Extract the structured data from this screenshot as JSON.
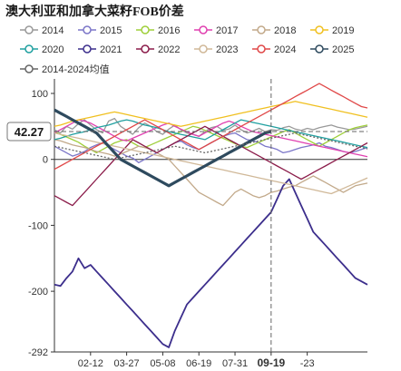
{
  "chart_data": {
    "type": "line",
    "title": "澳大利亚和加拿大菜籽FOB价差",
    "xlabel": "",
    "ylabel": "",
    "ylim": [
      -292,
      122
    ],
    "yticks": [
      100,
      0,
      -100,
      -200,
      -292
    ],
    "x_count": 53,
    "x_ticks": [
      {
        "i": 6,
        "label": "02-12"
      },
      {
        "i": 12,
        "label": "03-27"
      },
      {
        "i": 18,
        "label": "05-08"
      },
      {
        "i": 24,
        "label": "06-19"
      },
      {
        "i": 30,
        "label": "07-31"
      },
      {
        "i": 36,
        "label": "09-19",
        "bold": true
      },
      {
        "i": 42,
        "label": "-23"
      }
    ],
    "highlight": {
      "x_index": 36,
      "y": 42.27,
      "label": "42.27"
    },
    "legend_position": "top",
    "series": [
      {
        "name": "2014",
        "color": "#999999",
        "width": 1.3,
        "values": [
          45,
          40,
          50,
          46,
          54,
          60,
          52,
          45,
          40,
          58,
          62,
          50,
          44,
          38,
          48,
          55,
          50,
          42,
          38,
          46,
          52,
          45,
          40,
          38,
          35,
          42,
          48,
          50,
          44,
          46,
          52,
          45,
          40,
          43,
          47,
          42,
          45,
          44,
          48,
          50,
          46,
          44,
          47,
          45,
          48,
          50,
          52,
          49,
          47,
          45,
          46,
          48,
          50
        ]
      },
      {
        "name": "2015",
        "color": "#7b76c8",
        "width": 1.3,
        "values": [
          20,
          15,
          10,
          5,
          8,
          12,
          18,
          22,
          25,
          20,
          15,
          10,
          5,
          2,
          -5,
          0,
          5,
          10,
          15,
          20,
          25,
          28,
          22,
          18,
          15,
          20,
          25,
          30,
          35,
          38,
          40,
          35,
          30,
          28,
          25,
          20,
          18,
          15,
          10,
          12,
          15,
          18,
          20,
          22,
          25,
          20,
          18,
          15,
          12,
          10,
          12,
          15,
          18
        ]
      },
      {
        "name": "2016",
        "color": "#9fcf3a",
        "width": 1.3,
        "values": [
          42,
          38,
          34,
          30,
          26,
          20,
          15,
          10,
          15,
          20,
          25,
          28,
          30,
          25,
          20,
          18,
          22,
          26,
          30,
          34,
          38,
          42,
          46,
          50,
          48,
          44,
          40,
          36,
          32,
          28,
          24,
          20,
          18,
          22,
          26,
          30,
          34,
          38,
          42,
          45,
          40,
          35,
          30,
          25,
          20,
          25,
          30,
          35,
          40,
          45,
          48,
          50,
          52
        ]
      },
      {
        "name": "2017",
        "color": "#e040b0",
        "width": 1.3,
        "values": [
          40,
          45,
          50,
          55,
          60,
          58,
          55,
          50,
          45,
          40,
          35,
          30,
          28,
          32,
          36,
          40,
          44,
          48,
          52,
          55,
          50,
          46,
          42,
          38,
          35,
          40,
          45,
          50,
          55,
          58,
          55,
          50,
          46,
          42,
          40,
          38,
          36,
          34,
          32,
          30,
          28,
          26,
          24,
          22,
          20,
          18,
          16,
          14,
          12,
          10,
          8,
          6,
          4
        ]
      },
      {
        "name": "2018",
        "color": "#c2a98a",
        "width": 1.3,
        "values": [
          30,
          28,
          25,
          22,
          20,
          18,
          15,
          12,
          10,
          8,
          5,
          8,
          12,
          16,
          20,
          18,
          15,
          10,
          5,
          0,
          -10,
          -20,
          -30,
          -40,
          -50,
          -55,
          -60,
          -65,
          -70,
          -60,
          -50,
          -45,
          -50,
          -55,
          -58,
          -55,
          -50,
          -48,
          -45,
          -42,
          -40,
          -35,
          -30,
          -25,
          -30,
          -35,
          -40,
          -45,
          -50,
          -45,
          -40,
          -38,
          -36
        ]
      },
      {
        "name": "2019",
        "color": "#f0c020",
        "width": 1.3,
        "values": [
          50,
          52,
          55,
          58,
          60,
          62,
          64,
          66,
          68,
          70,
          72,
          70,
          68,
          66,
          64,
          62,
          60,
          58,
          56,
          54,
          52,
          50,
          52,
          54,
          56,
          58,
          60,
          62,
          64,
          66,
          68,
          70,
          72,
          74,
          76,
          78,
          80,
          82,
          84,
          86,
          88,
          86,
          84,
          82,
          80,
          78,
          76,
          74,
          72,
          70,
          68,
          66,
          64
        ]
      },
      {
        "name": "2020",
        "color": "#20a0a0",
        "width": 1.3,
        "values": [
          30,
          32,
          35,
          38,
          40,
          42,
          45,
          48,
          50,
          52,
          55,
          58,
          60,
          58,
          55,
          52,
          50,
          48,
          45,
          42,
          40,
          38,
          36,
          34,
          32,
          30,
          35,
          40,
          45,
          50,
          55,
          60,
          58,
          56,
          54,
          52,
          50,
          48,
          46,
          44,
          42,
          40,
          38,
          36,
          34,
          32,
          30,
          28,
          26,
          24,
          22,
          20,
          18
        ]
      },
      {
        "name": "2021",
        "color": "#3c2e8c",
        "width": 1.8,
        "values": [
          -190,
          -192,
          -180,
          -170,
          -150,
          -165,
          -160,
          -170,
          -180,
          -190,
          -200,
          -210,
          -220,
          -230,
          -240,
          -250,
          -260,
          -270,
          -280,
          -285,
          -260,
          -240,
          -220,
          -210,
          -200,
          -190,
          -180,
          -170,
          -160,
          -150,
          -140,
          -130,
          -120,
          -110,
          -100,
          -90,
          -80,
          -60,
          -40,
          -30,
          -50,
          -70,
          -90,
          -110,
          -120,
          -130,
          -140,
          -150,
          -160,
          -170,
          -180,
          -185,
          -190
        ]
      },
      {
        "name": "2022",
        "color": "#8b1c4a",
        "width": 1.3,
        "values": [
          -55,
          -60,
          -65,
          -70,
          -60,
          -50,
          -40,
          -30,
          -20,
          -10,
          0,
          10,
          20,
          30,
          25,
          20,
          15,
          10,
          15,
          20,
          25,
          30,
          35,
          40,
          45,
          50,
          45,
          40,
          35,
          30,
          25,
          20,
          15,
          10,
          5,
          0,
          -5,
          -10,
          -15,
          -20,
          -25,
          -30,
          -25,
          -20,
          -15,
          -10,
          -5,
          0,
          5,
          10,
          15,
          20,
          25
        ]
      },
      {
        "name": "2023",
        "color": "#d0b898",
        "width": 1.3,
        "values": [
          40,
          38,
          36,
          34,
          32,
          30,
          28,
          26,
          24,
          22,
          20,
          18,
          16,
          14,
          12,
          10,
          8,
          6,
          4,
          2,
          0,
          -2,
          -4,
          -6,
          -8,
          -10,
          -12,
          -14,
          -16,
          -18,
          -20,
          -22,
          -24,
          -26,
          -28,
          -30,
          -32,
          -34,
          -36,
          -38,
          -40,
          -42,
          -44,
          -46,
          -48,
          -50,
          -52,
          -48,
          -44,
          -40,
          -36,
          -32,
          -28
        ]
      },
      {
        "name": "2024",
        "color": "#e04848",
        "width": 1.3,
        "values": [
          -15,
          -10,
          -5,
          0,
          5,
          10,
          15,
          20,
          25,
          30,
          35,
          40,
          45,
          50,
          55,
          60,
          55,
          50,
          45,
          40,
          35,
          30,
          25,
          20,
          15,
          20,
          25,
          30,
          35,
          40,
          45,
          50,
          55,
          60,
          65,
          70,
          75,
          80,
          85,
          90,
          95,
          100,
          105,
          110,
          115,
          110,
          105,
          100,
          95,
          90,
          85,
          80,
          78
        ]
      },
      {
        "name": "2025",
        "color": "#2e4a5e",
        "width": 3.2,
        "values": [
          75,
          70,
          65,
          60,
          55,
          50,
          45,
          40,
          30,
          20,
          10,
          0,
          -5,
          -10,
          -15,
          -20,
          -25,
          -30,
          -35,
          -40,
          -35,
          -30,
          -25,
          -20,
          -15,
          -10,
          -5,
          0,
          5,
          10,
          15,
          20,
          25,
          30,
          35,
          40,
          42.27
        ]
      },
      {
        "name": "2014-2024均值",
        "color": "#666666",
        "width": 1.3,
        "dashed": true,
        "values": [
          20,
          18,
          16,
          14,
          12,
          10,
          8,
          6,
          4,
          2,
          0,
          2,
          4,
          6,
          8,
          10,
          12,
          14,
          16,
          18,
          20,
          18,
          16,
          14,
          12,
          10,
          12,
          14,
          16,
          18,
          20,
          22,
          24,
          26,
          28,
          30,
          32,
          34,
          36,
          38,
          40,
          38,
          36,
          34,
          32,
          30,
          28,
          26,
          24,
          22,
          20,
          18,
          16
        ]
      }
    ]
  }
}
